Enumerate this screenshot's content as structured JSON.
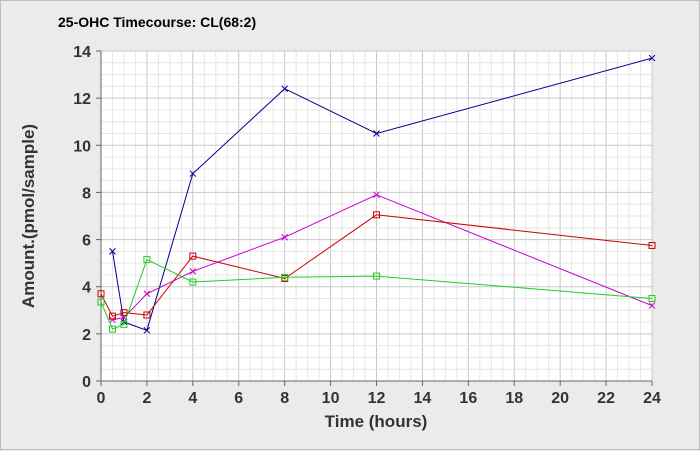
{
  "chart_data": {
    "type": "line",
    "title": "25-OHC Timecourse: CL(68:2)",
    "xlabel": "Time (hours)",
    "ylabel": "Amount.(pmol/sample)",
    "xlim": [
      0,
      24
    ],
    "ylim": [
      0,
      14
    ],
    "x_ticks": [
      0,
      2,
      4,
      6,
      8,
      10,
      12,
      14,
      16,
      18,
      20,
      22,
      24
    ],
    "y_ticks": [
      0,
      2,
      4,
      6,
      8,
      10,
      12,
      14
    ],
    "grid": true,
    "legend": "none",
    "series": [
      {
        "color": "#00008b",
        "marker": "x",
        "points": [
          [
            0.5,
            5.5
          ],
          [
            1,
            2.5
          ],
          [
            2,
            2.15
          ],
          [
            4,
            8.8
          ],
          [
            8,
            12.4
          ],
          [
            12,
            10.5
          ],
          [
            24,
            13.7
          ]
        ]
      },
      {
        "color": "#cc00cc",
        "marker": "x",
        "points": [
          [
            0.5,
            2.6
          ],
          [
            1,
            2.7
          ],
          [
            2,
            3.7
          ],
          [
            4,
            4.65
          ],
          [
            8,
            6.1
          ],
          [
            12,
            7.9
          ],
          [
            24,
            3.2
          ]
        ]
      },
      {
        "color": "#cc0000",
        "marker": "square",
        "points": [
          [
            0,
            3.7
          ],
          [
            0.5,
            2.75
          ],
          [
            1,
            2.9
          ],
          [
            2,
            2.8
          ],
          [
            4,
            5.3
          ],
          [
            8,
            4.35
          ],
          [
            12,
            7.05
          ],
          [
            24,
            5.75
          ]
        ]
      },
      {
        "color": "#22cc22",
        "marker": "square",
        "points": [
          [
            0,
            3.35
          ],
          [
            0.5,
            2.2
          ],
          [
            1,
            2.4
          ],
          [
            2,
            5.15
          ],
          [
            4,
            4.2
          ],
          [
            8,
            4.4
          ],
          [
            12,
            4.45
          ],
          [
            24,
            3.5
          ]
        ]
      }
    ]
  }
}
